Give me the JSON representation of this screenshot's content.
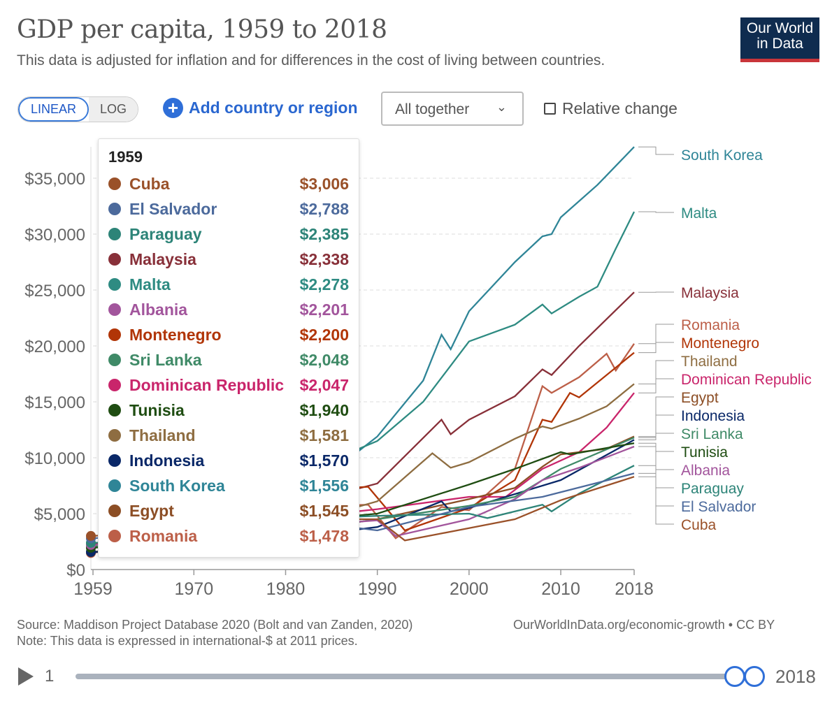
{
  "header": {
    "title": "GDP per capita, 1959 to 2018",
    "subtitle": "This data is adjusted for inflation and for differences in the cost of living between countries.",
    "logo": "Our World in Data"
  },
  "controls": {
    "linear": "LINEAR",
    "log": "LOG",
    "add": "Add country or region",
    "select": "All together",
    "relative": "Relative change"
  },
  "tooltip": {
    "year": "1959",
    "rows": [
      {
        "name": "Cuba",
        "value": "$3,006",
        "color": "#9a5129"
      },
      {
        "name": "El Salvador",
        "value": "$2,788",
        "color": "#4c6a9c"
      },
      {
        "name": "Paraguay",
        "value": "$2,385",
        "color": "#2d8478"
      },
      {
        "name": "Malaysia",
        "value": "$2,338",
        "color": "#883039"
      },
      {
        "name": "Malta",
        "value": "$2,278",
        "color": "#2e8b82"
      },
      {
        "name": "Albania",
        "value": "$2,201",
        "color": "#a2559c"
      },
      {
        "name": "Montenegro",
        "value": "$2,200",
        "color": "#b13507"
      },
      {
        "name": "Sri Lanka",
        "value": "$2,048",
        "color": "#3f8a67"
      },
      {
        "name": "Dominican Republic",
        "value": "$2,047",
        "color": "#c9256b"
      },
      {
        "name": "Tunisia",
        "value": "$1,940",
        "color": "#1f4d12"
      },
      {
        "name": "Thailand",
        "value": "$1,581",
        "color": "#8e6d41"
      },
      {
        "name": "Indonesia",
        "value": "$1,570",
        "color": "#0a2868"
      },
      {
        "name": "South Korea",
        "value": "$1,556",
        "color": "#2f8597"
      },
      {
        "name": "Egypt",
        "value": "$1,545",
        "color": "#8c4e25"
      },
      {
        "name": "Romania",
        "value": "$1,478",
        "color": "#bc5f48"
      }
    ]
  },
  "footer": {
    "source": "Source: Maddison Project Database 2020 (Bolt and van Zanden, 2020)",
    "note": "Note: This data is expressed in international-$ at 2011 prices.",
    "url": "OurWorldInData.org/economic-growth • CC BY",
    "start": "1",
    "end": "2018"
  },
  "chart_data": {
    "type": "line",
    "title": "GDP per capita, 1959 to 2018",
    "ylim": [
      0,
      38000
    ],
    "xlim": [
      1959,
      2018
    ],
    "yticks": [
      0,
      5000,
      10000,
      15000,
      20000,
      25000,
      30000,
      35000
    ],
    "ytick_labels": [
      "$0",
      "$5,000",
      "$10,000",
      "$15,000",
      "$20,000",
      "$25,000",
      "$30,000",
      "$35,000"
    ],
    "xticks": [
      1959,
      1970,
      1980,
      1990,
      2000,
      2010,
      2018
    ],
    "xtick_labels": [
      "1959",
      "1970",
      "1980",
      "1990",
      "2000",
      "2010",
      "2018"
    ],
    "series": [
      {
        "name": "South Korea",
        "color": "#2f8597",
        "points": [
          [
            1959,
            1556
          ],
          [
            1970,
            3000
          ],
          [
            1980,
            5500
          ],
          [
            1990,
            11900
          ],
          [
            1995,
            16900
          ],
          [
            1997,
            21000
          ],
          [
            1998,
            19700
          ],
          [
            2000,
            23100
          ],
          [
            2005,
            27500
          ],
          [
            2008,
            29800
          ],
          [
            2009,
            30000
          ],
          [
            2010,
            31500
          ],
          [
            2014,
            34400
          ],
          [
            2018,
            37800
          ]
        ]
      },
      {
        "name": "Malta",
        "color": "#2e8b82",
        "points": [
          [
            1959,
            2278
          ],
          [
            1970,
            4000
          ],
          [
            1980,
            8000
          ],
          [
            1990,
            11500
          ],
          [
            1995,
            15000
          ],
          [
            2000,
            20400
          ],
          [
            2005,
            21900
          ],
          [
            2008,
            23700
          ],
          [
            2009,
            22900
          ],
          [
            2012,
            24400
          ],
          [
            2014,
            25300
          ],
          [
            2016,
            28700
          ],
          [
            2018,
            32000
          ]
        ]
      },
      {
        "name": "Malaysia",
        "color": "#883039",
        "points": [
          [
            1959,
            2338
          ],
          [
            1970,
            3500
          ],
          [
            1980,
            5500
          ],
          [
            1990,
            7700
          ],
          [
            1997,
            13400
          ],
          [
            1998,
            12100
          ],
          [
            2000,
            13400
          ],
          [
            2005,
            15500
          ],
          [
            2008,
            17900
          ],
          [
            2009,
            17400
          ],
          [
            2012,
            20000
          ],
          [
            2018,
            24800
          ]
        ]
      },
      {
        "name": "Romania",
        "color": "#bc5f48",
        "points": [
          [
            1959,
            1478
          ],
          [
            1970,
            3200
          ],
          [
            1980,
            5500
          ],
          [
            1989,
            5800
          ],
          [
            1992,
            2800
          ],
          [
            1997,
            5600
          ],
          [
            2000,
            5300
          ],
          [
            2005,
            9000
          ],
          [
            2008,
            16400
          ],
          [
            2009,
            15800
          ],
          [
            2012,
            17200
          ],
          [
            2015,
            19300
          ],
          [
            2016,
            17800
          ],
          [
            2018,
            20200
          ]
        ]
      },
      {
        "name": "Montenegro",
        "color": "#b13507",
        "points": [
          [
            1959,
            2200
          ],
          [
            1970,
            4500
          ],
          [
            1980,
            7000
          ],
          [
            1989,
            7400
          ],
          [
            1993,
            3500
          ],
          [
            2000,
            5500
          ],
          [
            2005,
            8000
          ],
          [
            2008,
            13400
          ],
          [
            2009,
            13200
          ],
          [
            2011,
            15800
          ],
          [
            2012,
            15400
          ],
          [
            2018,
            19400
          ]
        ]
      },
      {
        "name": "Thailand",
        "color": "#8e6d41",
        "points": [
          [
            1959,
            1581
          ],
          [
            1970,
            2500
          ],
          [
            1980,
            3800
          ],
          [
            1990,
            6100
          ],
          [
            1996,
            10400
          ],
          [
            1998,
            9100
          ],
          [
            2000,
            9600
          ],
          [
            2005,
            11700
          ],
          [
            2008,
            12800
          ],
          [
            2009,
            12600
          ],
          [
            2012,
            13500
          ],
          [
            2015,
            14600
          ],
          [
            2018,
            16600
          ]
        ]
      },
      {
        "name": "Dominican Republic",
        "color": "#c9256b",
        "points": [
          [
            1959,
            2047
          ],
          [
            1970,
            3000
          ],
          [
            1980,
            4500
          ],
          [
            1990,
            5400
          ],
          [
            2000,
            6500
          ],
          [
            2004,
            6500
          ],
          [
            2008,
            9000
          ],
          [
            2012,
            10500
          ],
          [
            2015,
            12700
          ],
          [
            2018,
            15800
          ]
        ]
      },
      {
        "name": "Egypt",
        "color": "#8c4e25",
        "points": [
          [
            1959,
            1545
          ],
          [
            1970,
            2000
          ],
          [
            1980,
            3300
          ],
          [
            1990,
            4500
          ],
          [
            2000,
            6300
          ],
          [
            2005,
            7300
          ],
          [
            2008,
            9200
          ],
          [
            2010,
            10300
          ],
          [
            2015,
            10800
          ],
          [
            2018,
            11900
          ]
        ]
      },
      {
        "name": "Indonesia",
        "color": "#0a2868",
        "points": [
          [
            1959,
            1570
          ],
          [
            1970,
            1800
          ],
          [
            1980,
            2800
          ],
          [
            1990,
            3800
          ],
          [
            1997,
            6100
          ],
          [
            1998,
            5200
          ],
          [
            2000,
            5500
          ],
          [
            2010,
            8000
          ],
          [
            2018,
            11600
          ]
        ]
      },
      {
        "name": "Sri Lanka",
        "color": "#3f8a67",
        "points": [
          [
            1959,
            2048
          ],
          [
            1970,
            2600
          ],
          [
            1980,
            3300
          ],
          [
            1990,
            4500
          ],
          [
            2000,
            5700
          ],
          [
            2005,
            6500
          ],
          [
            2010,
            9000
          ],
          [
            2018,
            11800
          ]
        ]
      },
      {
        "name": "Tunisia",
        "color": "#1f4d12",
        "points": [
          [
            1959,
            1940
          ],
          [
            1970,
            2700
          ],
          [
            1980,
            4200
          ],
          [
            1990,
            5000
          ],
          [
            2000,
            7600
          ],
          [
            2005,
            9000
          ],
          [
            2010,
            10500
          ],
          [
            2011,
            10300
          ],
          [
            2018,
            11300
          ]
        ]
      },
      {
        "name": "Albania",
        "color": "#a2559c",
        "points": [
          [
            1959,
            2201
          ],
          [
            1970,
            3000
          ],
          [
            1980,
            3800
          ],
          [
            1990,
            4400
          ],
          [
            1992,
            3000
          ],
          [
            2000,
            4500
          ],
          [
            2005,
            6300
          ],
          [
            2008,
            8000
          ],
          [
            2012,
            9100
          ],
          [
            2018,
            11000
          ]
        ]
      },
      {
        "name": "Paraguay",
        "color": "#2d8478",
        "points": [
          [
            1959,
            2385
          ],
          [
            1970,
            2800
          ],
          [
            1980,
            4500
          ],
          [
            1990,
            4800
          ],
          [
            2000,
            5000
          ],
          [
            2002,
            4600
          ],
          [
            2008,
            5800
          ],
          [
            2009,
            5200
          ],
          [
            2012,
            6800
          ],
          [
            2018,
            9300
          ]
        ]
      },
      {
        "name": "El Salvador",
        "color": "#4c6a9c",
        "points": [
          [
            1959,
            2788
          ],
          [
            1970,
            3500
          ],
          [
            1980,
            4500
          ],
          [
            1990,
            3500
          ],
          [
            2000,
            5600
          ],
          [
            2008,
            6500
          ],
          [
            2018,
            8600
          ]
        ]
      },
      {
        "name": "Cuba",
        "color": "#9a5129",
        "points": [
          [
            1959,
            3006
          ],
          [
            1970,
            3500
          ],
          [
            1980,
            4500
          ],
          [
            1990,
            4500
          ],
          [
            1993,
            2600
          ],
          [
            2000,
            3700
          ],
          [
            2005,
            4500
          ],
          [
            2010,
            6200
          ],
          [
            2018,
            8300
          ]
        ]
      }
    ]
  }
}
